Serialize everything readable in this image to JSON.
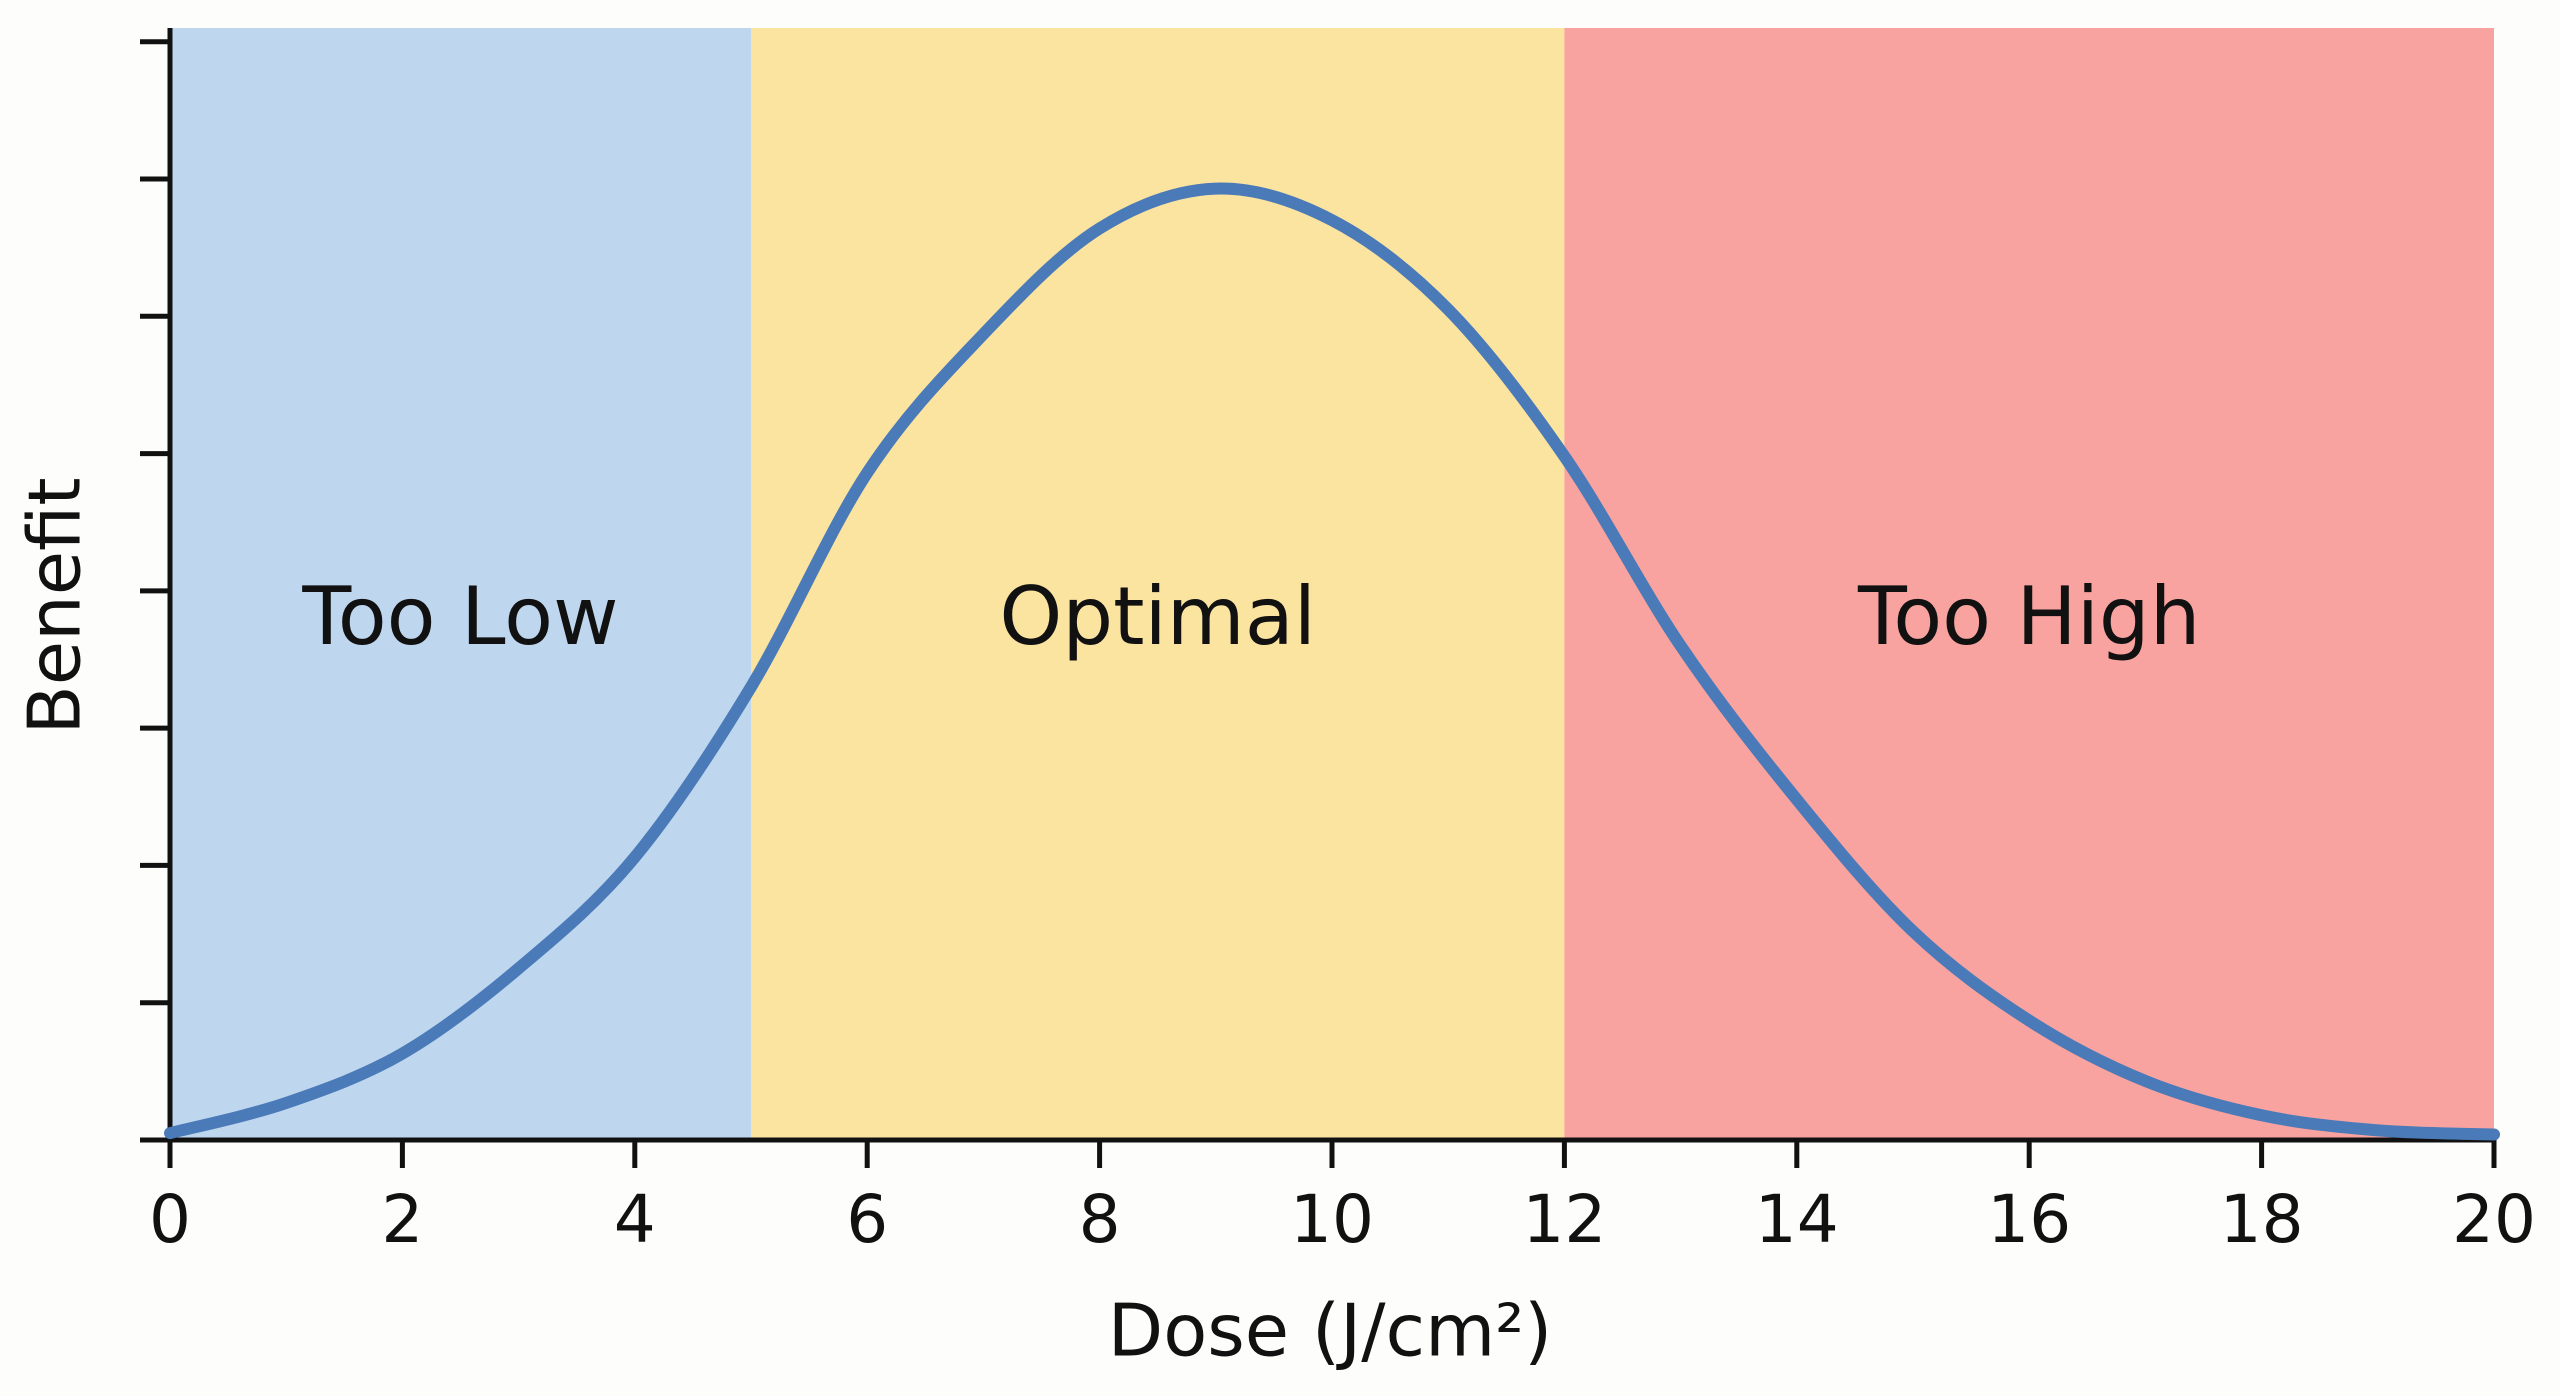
{
  "chart_data": {
    "type": "line",
    "xlabel": "Dose (J/cm²)",
    "ylabel": "Benefit",
    "x": [
      0,
      1,
      2,
      3,
      4,
      5,
      6,
      7,
      8,
      9,
      10,
      11,
      12,
      13,
      14,
      15,
      16,
      17,
      18,
      19,
      20
    ],
    "series": [
      {
        "color": "#4a7ab8",
        "values": [
          0.05,
          0.27,
          0.63,
          1.25,
          2.06,
          3.3,
          4.86,
          5.87,
          6.64,
          6.93,
          6.7,
          6.05,
          4.98,
          3.6,
          2.48,
          1.52,
          0.87,
          0.43,
          0.18,
          0.07,
          0.04
        ]
      }
    ],
    "regions": [
      {
        "label": "Too Low",
        "from": 0,
        "to": 5,
        "color": "#bed7ee"
      },
      {
        "label": "Optimal",
        "from": 5,
        "to": 12,
        "color": "#fbe3a0"
      },
      {
        "label": "Too High",
        "from": 12,
        "to": 20,
        "color": "#f9a3a0"
      }
    ],
    "xlim": [
      0,
      20
    ],
    "xticks": [
      0,
      2,
      4,
      6,
      8,
      10,
      12,
      14,
      16,
      18,
      20
    ],
    "ylim": [
      0,
      8.1
    ],
    "yticks": [
      0,
      1,
      2,
      3,
      4,
      5,
      6,
      7,
      8
    ]
  }
}
